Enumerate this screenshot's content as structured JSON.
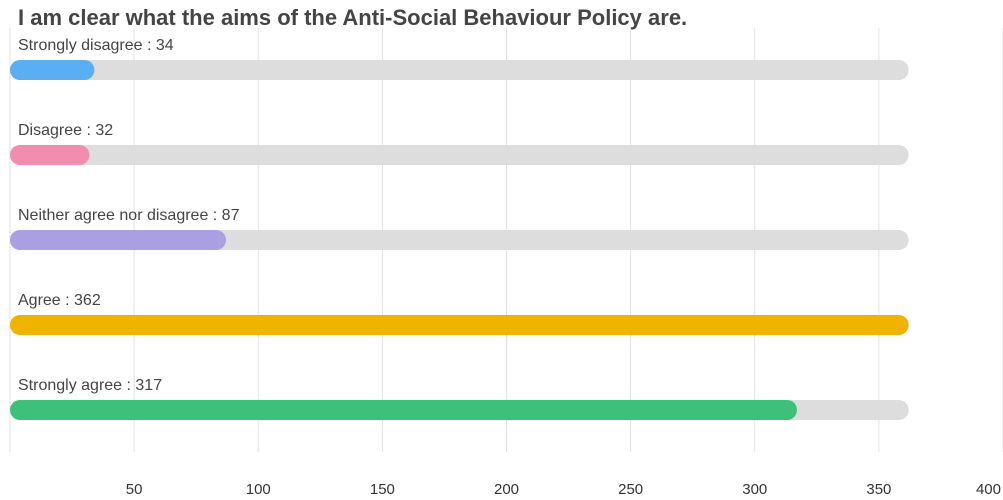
{
  "chart_data": {
    "type": "bar",
    "orientation": "horizontal",
    "title": "I am clear what the aims of the Anti-Social Behaviour Policy are.",
    "categories": [
      "Strongly disagree",
      "Disagree",
      "Neither agree nor disagree",
      "Agree",
      "Strongly agree"
    ],
    "values": [
      34,
      32,
      87,
      362,
      317
    ],
    "track_max": 362,
    "colors": [
      "#5aaef3",
      "#f28db0",
      "#ab9fe4",
      "#f0b400",
      "#3cc07a"
    ],
    "track_color": "#dddddd",
    "xlim": [
      0,
      400
    ],
    "x_ticks": [
      "50",
      "100",
      "150",
      "200",
      "250",
      "300",
      "350",
      "400"
    ],
    "grid": true,
    "legend": "none"
  }
}
